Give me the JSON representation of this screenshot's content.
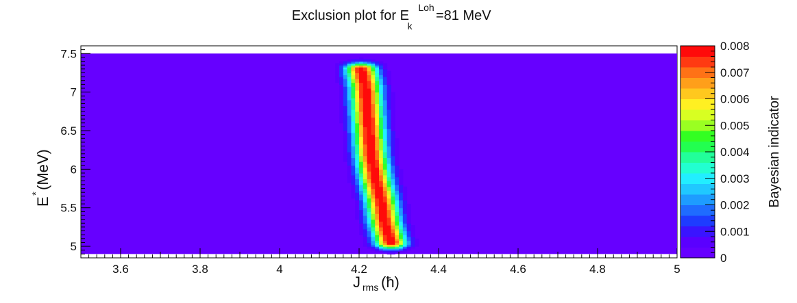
{
  "chart_data": {
    "type": "heatmap",
    "title": {
      "prefix": "Exclusion plot for E",
      "superscript": "Loh",
      "subscript": "k",
      "suffix": "=81 MeV"
    },
    "xlabel": {
      "main": "J",
      "subscript": "rms",
      "unit": " (ħ)"
    },
    "ylabel": {
      "main": "E",
      "superscript": "*",
      "unit": " (MeV)"
    },
    "zlabel": "Bayesian indicator",
    "xlim": [
      3.5,
      5.0
    ],
    "ylim": [
      4.85,
      7.6
    ],
    "zlim": [
      0,
      0.008
    ],
    "x_ticks": [
      "3.6",
      "3.8",
      "4",
      "4.2",
      "4.4",
      "4.6",
      "4.8",
      "5"
    ],
    "y_ticks": [
      "5",
      "5.5",
      "6",
      "6.5",
      "7",
      "7.5"
    ],
    "z_ticks": [
      "0",
      "0.001",
      "0.002",
      "0.003",
      "0.004",
      "0.005",
      "0.006",
      "0.007",
      "0.008"
    ],
    "data_extent": {
      "x": [
        3.5,
        5.0
      ],
      "y": [
        4.9,
        7.5
      ]
    },
    "ridge": {
      "y": [
        5.05,
        5.3,
        5.6,
        5.9,
        6.2,
        6.5,
        6.8,
        7.1,
        7.3
      ],
      "x": [
        4.28,
        4.265,
        4.255,
        4.24,
        4.23,
        4.225,
        4.22,
        4.215,
        4.205
      ],
      "sigma": 0.028,
      "peak": 0.008
    },
    "palette": [
      "#6600ff",
      "#5a00ff",
      "#3a14ff",
      "#1e3cff",
      "#1f6cff",
      "#1e9cff",
      "#20c8ff",
      "#22eeff",
      "#22ffd0",
      "#22ff9a",
      "#22ff50",
      "#33ff22",
      "#9aff22",
      "#d8ff22",
      "#fff022",
      "#ffc81e",
      "#ff9f1a",
      "#ff7216",
      "#ff3a12",
      "#ff0a0a"
    ],
    "grid": false,
    "colorbar": "right"
  }
}
